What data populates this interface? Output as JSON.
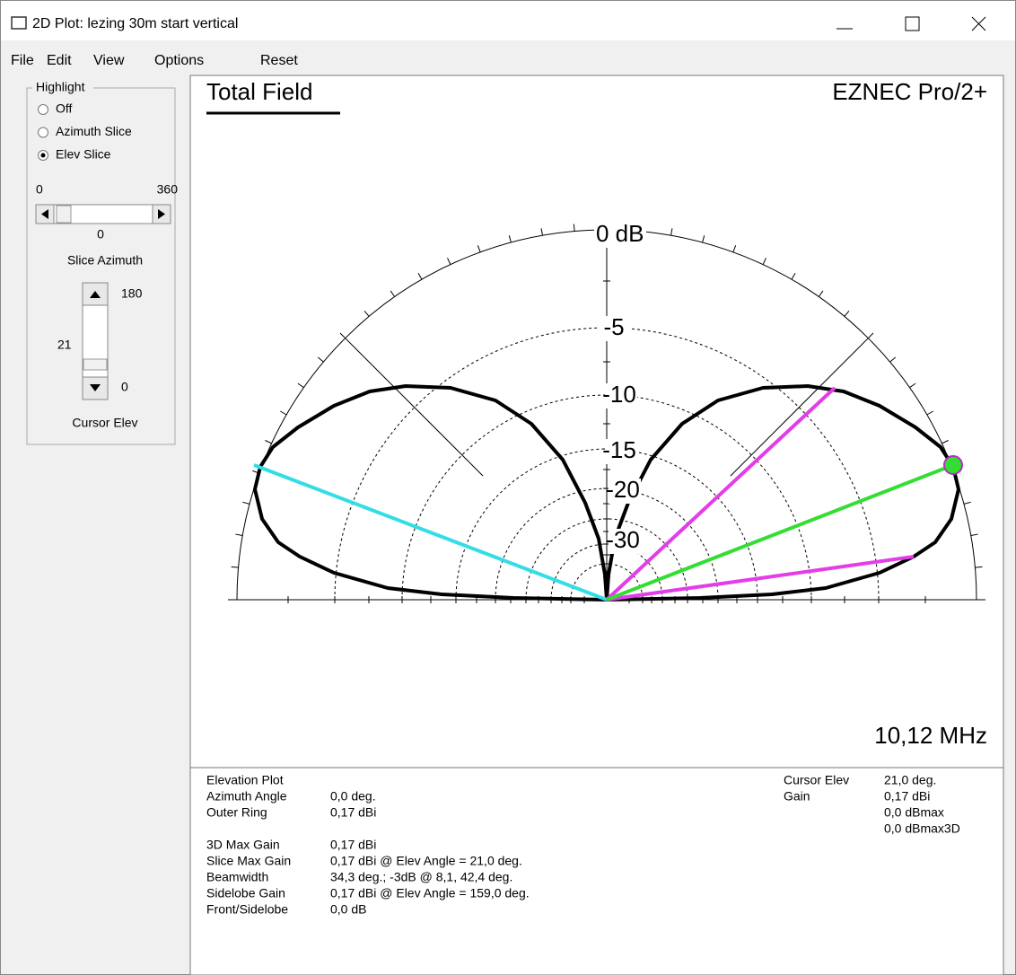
{
  "window": {
    "title": "2D Plot: lezing 30m start vertical"
  },
  "menu": [
    "File",
    "Edit",
    "View",
    "Options",
    "Reset"
  ],
  "highlight": {
    "label": "Highlight",
    "options": [
      "Off",
      "Azimuth Slice",
      "Elev Slice"
    ],
    "selected": 2
  },
  "slice_azimuth": {
    "min": "0",
    "max": "360",
    "value": "0",
    "label": "Slice Azimuth"
  },
  "cursor_elev": {
    "max": "180",
    "value": "21",
    "min": "0",
    "label": "Cursor Elev"
  },
  "plot": {
    "title": "Total Field",
    "product": "EZNEC Pro/2+",
    "frequency": "10,12 MHz",
    "ring_labels": [
      "0 dB",
      "-5",
      "-10",
      "-15",
      "-20",
      "-30"
    ]
  },
  "info": {
    "left": [
      [
        "Elevation Plot",
        ""
      ],
      [
        "Azimuth Angle",
        "0,0 deg."
      ],
      [
        "Outer Ring",
        "0,17 dBi"
      ],
      [
        "3D Max Gain",
        "0,17 dBi"
      ],
      [
        "Slice Max Gain",
        "0,17 dBi @ Elev Angle = 21,0 deg."
      ],
      [
        "Beamwidth",
        "34,3 deg.; -3dB @ 8,1, 42,4 deg."
      ],
      [
        "Sidelobe Gain",
        "0,17 dBi @ Elev Angle = 159,0 deg."
      ],
      [
        "Front/Sidelobe",
        "0,0 dB"
      ]
    ],
    "right": [
      [
        "Cursor Elev",
        "21,0 deg."
      ],
      [
        "Gain",
        "0,17 dBi"
      ],
      [
        "",
        "0,0 dBmax"
      ],
      [
        "",
        "0,0 dBmax3D"
      ]
    ]
  }
}
